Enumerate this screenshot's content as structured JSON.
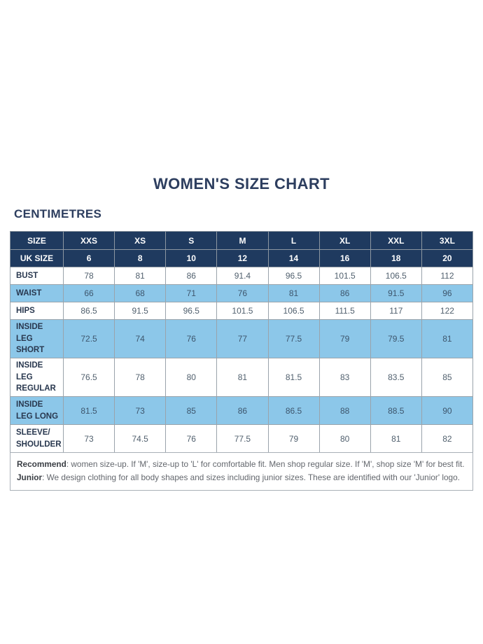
{
  "page": {
    "title": "WOMEN'S SIZE CHART",
    "unit_label": "CENTIMETRES"
  },
  "colors": {
    "header_navy": "#1f3a5f",
    "row_blue": "#8cc7e9",
    "grid_gray": "#9aa3ab",
    "title_navy": "#2d3e5f"
  },
  "table": {
    "size_row_label": "SIZE",
    "uk_row_label": "UK SIZE",
    "sizes": [
      "XXS",
      "XS",
      "S",
      "M",
      "L",
      "XL",
      "XXL",
      "3XL"
    ],
    "uk_sizes": [
      "6",
      "8",
      "10",
      "12",
      "14",
      "16",
      "18",
      "20"
    ],
    "rows": [
      {
        "label": "BUST",
        "values": [
          "78",
          "81",
          "86",
          "91.4",
          "96.5",
          "101.5",
          "106.5",
          "112"
        ]
      },
      {
        "label": "WAIST",
        "values": [
          "66",
          "68",
          "71",
          "76",
          "81",
          "86",
          "91.5",
          "96"
        ]
      },
      {
        "label": "HIPS",
        "values": [
          "86.5",
          "91.5",
          "96.5",
          "101.5",
          "106.5",
          "111.5",
          "117",
          "122"
        ]
      },
      {
        "label": "INSIDE LEG SHORT",
        "values": [
          "72.5",
          "74",
          "76",
          "77",
          "77.5",
          "79",
          "79.5",
          "81"
        ]
      },
      {
        "label": "INSIDE LEG REGULAR",
        "values": [
          "76.5",
          "78",
          "80",
          "81",
          "81.5",
          "83",
          "83.5",
          "85"
        ]
      },
      {
        "label": "INSIDE LEG LONG",
        "values": [
          "81.5",
          "73",
          "85",
          "86",
          "86.5",
          "88",
          "88.5",
          "90"
        ]
      },
      {
        "label": "SLEEVE/ SHOULDER",
        "values": [
          "73",
          "74.5",
          "76",
          "77.5",
          "79",
          "80",
          "81",
          "82"
        ]
      }
    ]
  },
  "footnote": {
    "recommend_label": "Recommend",
    "recommend_text": ": women size-up. If 'M', size-up to 'L' for comfortable fit. Men shop regular size. If 'M', shop size 'M' for best fit.",
    "junior_label": "Junior",
    "junior_text": ": We design clothing for all body shapes and sizes including junior sizes. These are identified with our 'Junior' logo."
  }
}
